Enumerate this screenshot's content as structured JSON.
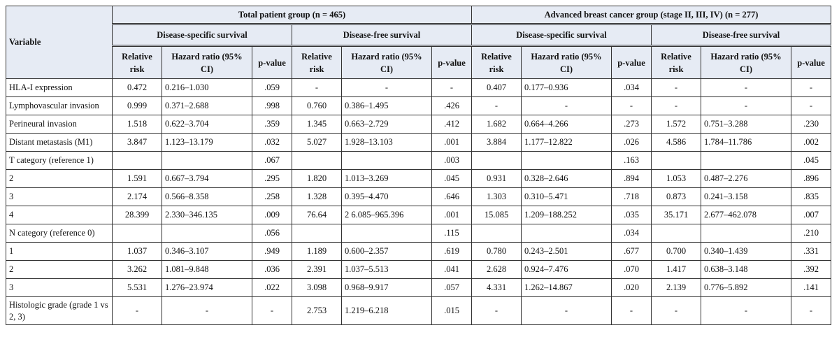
{
  "header": {
    "variable": "Variable",
    "groups": [
      "Total patient group (n = 465)",
      "Advanced breast cancer group (stage II, III, IV) (n = 277)"
    ],
    "subgroups": [
      "Disease-specific survival",
      "Disease-free survival",
      "Disease-specific survival",
      "Disease-free survival"
    ],
    "relative_risk": "Relative risk",
    "hazard_ratio": "Hazard ratio (95% CI)",
    "p_value": "p-value"
  },
  "rows": [
    {
      "variable": "HLA-I expression",
      "values": [
        "0.472",
        "0.216–1.030",
        ".059",
        "-",
        "-",
        "-",
        "0.407",
        "0.177–0.936",
        ".034",
        "-",
        "-",
        "-"
      ]
    },
    {
      "variable": "Lymphovascular invasion",
      "values": [
        "0.999",
        "0.371–2.688",
        ".998",
        "0.760",
        "0.386–1.495",
        ".426",
        "-",
        "-",
        "-",
        "-",
        "-",
        "-"
      ]
    },
    {
      "variable": "Perineural invasion",
      "values": [
        "1.518",
        "0.622–3.704",
        ".359",
        "1.345",
        "0.663–2.729",
        ".412",
        "1.682",
        "0.664–4.266",
        ".273",
        "1.572",
        "0.751–3.288",
        ".230"
      ]
    },
    {
      "variable": "Distant metastasis (M1)",
      "values": [
        "3.847",
        "1.123–13.179",
        ".032",
        "5.027",
        "1.928–13.103",
        ".001",
        "3.884",
        "1.177–12.822",
        ".026",
        "4.586",
        "1.784–11.786",
        ".002"
      ]
    },
    {
      "variable": "T category (reference 1)",
      "values": [
        "",
        "",
        ".067",
        "",
        "",
        ".003",
        "",
        "",
        ".163",
        "",
        "",
        ".045"
      ]
    },
    {
      "variable": "2",
      "values": [
        "1.591",
        "0.667–3.794",
        ".295",
        "1.820",
        "1.013–3.269",
        ".045",
        "0.931",
        "0.328–2.646",
        ".894",
        "1.053",
        "0.487–2.276",
        ".896"
      ]
    },
    {
      "variable": "3",
      "values": [
        "2.174",
        "0.566–8.358",
        ".258",
        "1.328",
        "0.395–4.470",
        ".646",
        "1.303",
        "0.310–5.471",
        ".718",
        "0.873",
        "0.241–3.158",
        ".835"
      ]
    },
    {
      "variable": "4",
      "values": [
        "28.399",
        "2.330–346.135",
        ".009",
        "76.64",
        "2 6.085–965.396",
        ".001",
        "15.085",
        "1.209–188.252",
        ".035",
        "35.171",
        "2.677–462.078",
        ".007"
      ]
    },
    {
      "variable": "N category (reference 0)",
      "values": [
        "",
        "",
        ".056",
        "",
        "",
        ".115",
        "",
        "",
        ".034",
        "",
        "",
        ".210"
      ]
    },
    {
      "variable": "1",
      "values": [
        "1.037",
        "0.346–3.107",
        ".949",
        "1.189",
        "0.600–2.357",
        ".619",
        "0.780",
        "0.243–2.501",
        ".677",
        "0.700",
        "0.340–1.439",
        ".331"
      ]
    },
    {
      "variable": "2",
      "values": [
        "3.262",
        "1.081–9.848",
        ".036",
        "2.391",
        "1.037–5.513",
        ".041",
        "2.628",
        "0.924–7.476",
        ".070",
        "1.417",
        "0.638–3.148",
        ".392"
      ]
    },
    {
      "variable": "3",
      "values": [
        "5.531",
        "1.276–23.974",
        ".022",
        "3.098",
        "0.968–9.917",
        ".057",
        "4.331",
        "1.262–14.867",
        ".020",
        "2.139",
        "0.776–5.892",
        ".141"
      ]
    },
    {
      "variable": "Histologic grade (grade 1 vs 2, 3)",
      "values": [
        "-",
        "-",
        "-",
        "2.753",
        "1.219–6.218",
        ".015",
        "-",
        "-",
        "-",
        "-",
        "-",
        "-"
      ]
    }
  ]
}
